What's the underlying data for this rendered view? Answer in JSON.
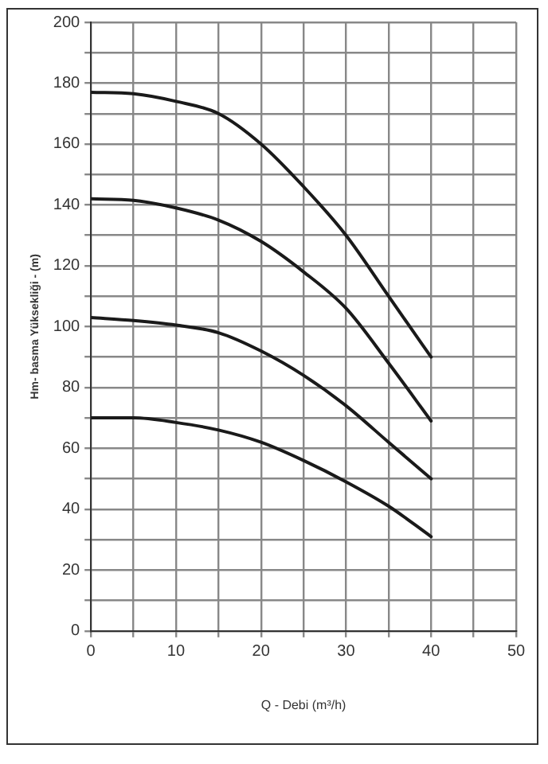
{
  "chart_data": {
    "type": "line",
    "xlabel": "Q - Debi (m³/h)",
    "ylabel": "Hm- basma Yüksekliği - (m)",
    "x": [
      0,
      5,
      10,
      15,
      20,
      25,
      30,
      35,
      40
    ],
    "series": [
      {
        "color": "#1a1a1a",
        "values": [
          177,
          176.5,
          174,
          170,
          160,
          146,
          130,
          110,
          90
        ]
      },
      {
        "color": "#1a1a1a",
        "values": [
          142,
          141.5,
          139,
          135,
          128,
          118,
          106,
          88,
          69
        ]
      },
      {
        "color": "#1a1a1a",
        "values": [
          103,
          102,
          100.5,
          98,
          92,
          84,
          74,
          62,
          50
        ]
      },
      {
        "color": "#1a1a1a",
        "values": [
          70,
          70,
          68.5,
          66,
          62,
          56,
          49,
          41,
          31
        ]
      }
    ],
    "xlim": [
      0,
      50
    ],
    "xticks": [
      0,
      {
        "value": 5,
        "label": null
      },
      10,
      {
        "value": 15,
        "label": null
      },
      20,
      {
        "value": 25,
        "label": null
      },
      30,
      {
        "value": 35,
        "label": null
      },
      40,
      {
        "value": 45,
        "label": null
      },
      50
    ],
    "ylim": [
      0,
      200
    ],
    "yticks": [
      0,
      {
        "value": 10,
        "label": null
      },
      20,
      {
        "value": 30,
        "label": null
      },
      40,
      {
        "value": 50,
        "label": null
      },
      60,
      {
        "value": 70,
        "label": null
      },
      80,
      {
        "value": 90,
        "label": null
      },
      100,
      {
        "value": 110,
        "label": null
      },
      120,
      {
        "value": 130,
        "label": null
      },
      140,
      {
        "value": 150,
        "label": null
      },
      160,
      {
        "value": 170,
        "label": null
      },
      180,
      {
        "value": 190,
        "label": null
      },
      200
    ],
    "grid": true,
    "legend": false,
    "marker": "none",
    "line_style": "solid"
  }
}
